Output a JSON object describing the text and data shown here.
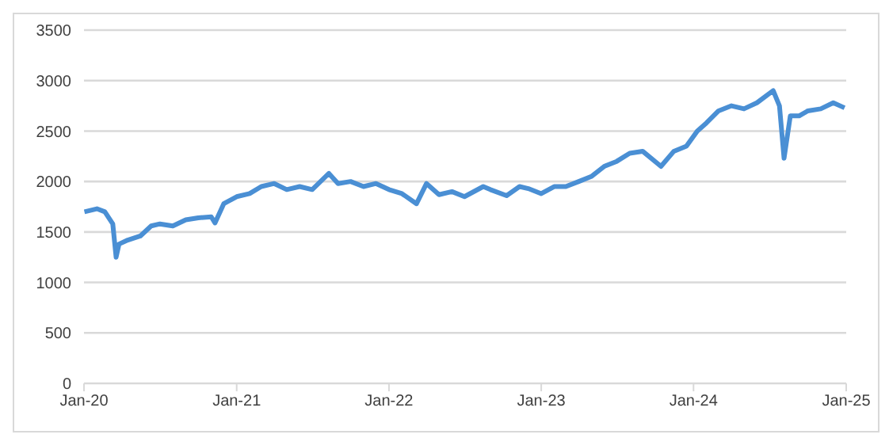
{
  "chart_data": {
    "type": "line",
    "x": [
      "2020-01-02",
      "2020-02-01",
      "2020-02-20",
      "2020-03-10",
      "2020-03-18",
      "2020-03-25",
      "2020-04-15",
      "2020-05-15",
      "2020-06-10",
      "2020-07-01",
      "2020-08-01",
      "2020-09-01",
      "2020-10-01",
      "2020-11-01",
      "2020-11-10",
      "2020-12-01",
      "2021-01-01",
      "2021-02-01",
      "2021-03-01",
      "2021-04-01",
      "2021-05-01",
      "2021-06-01",
      "2021-07-01",
      "2021-08-10",
      "2021-09-01",
      "2021-10-01",
      "2021-11-01",
      "2021-12-01",
      "2022-01-01",
      "2022-02-01",
      "2022-03-08",
      "2022-04-01",
      "2022-05-01",
      "2022-06-01",
      "2022-07-01",
      "2022-08-15",
      "2022-09-01",
      "2022-10-10",
      "2022-11-10",
      "2022-12-01",
      "2023-01-01",
      "2023-02-01",
      "2023-03-01",
      "2023-04-01",
      "2023-05-01",
      "2023-06-01",
      "2023-07-01",
      "2023-08-01",
      "2023-09-01",
      "2023-10-15",
      "2023-11-15",
      "2023-12-15",
      "2024-01-10",
      "2024-02-01",
      "2024-03-01",
      "2024-04-01",
      "2024-05-01",
      "2024-06-01",
      "2024-07-10",
      "2024-07-25",
      "2024-08-05",
      "2024-08-20",
      "2024-09-10",
      "2024-10-01",
      "2024-11-01",
      "2024-12-01",
      "2024-12-28"
    ],
    "series": [
      {
        "color": "#4a8fd4",
        "values": [
          1700,
          1730,
          1700,
          1580,
          1250,
          1380,
          1420,
          1460,
          1560,
          1580,
          1560,
          1620,
          1640,
          1650,
          1590,
          1780,
          1850,
          1880,
          1950,
          1980,
          1920,
          1950,
          1920,
          2080,
          1980,
          2000,
          1950,
          1980,
          1920,
          1880,
          1780,
          1980,
          1870,
          1900,
          1850,
          1950,
          1920,
          1860,
          1950,
          1930,
          1880,
          1950,
          1950,
          2000,
          2050,
          2150,
          2200,
          2280,
          2300,
          2150,
          2300,
          2350,
          2500,
          2580,
          2700,
          2750,
          2720,
          2780,
          2900,
          2750,
          2230,
          2650,
          2650,
          2700,
          2720,
          2780,
          2730
        ]
      }
    ],
    "ylim": [
      0,
      3500
    ],
    "yticks": [
      0,
      500,
      1000,
      1500,
      2000,
      2500,
      3000,
      3500
    ],
    "xlim": [
      "2020-01-01",
      "2025-01-01"
    ],
    "xticks": [
      {
        "value": "2020-01-01",
        "label": "Jan-20"
      },
      {
        "value": "2021-01-01",
        "label": "Jan-21"
      },
      {
        "value": "2022-01-01",
        "label": "Jan-22"
      },
      {
        "value": "2023-01-01",
        "label": "Jan-23"
      },
      {
        "value": "2024-01-01",
        "label": "Jan-24"
      },
      {
        "value": "2025-01-01",
        "label": "Jan-25"
      }
    ],
    "grid": "y",
    "legend": false,
    "marker": "none",
    "line_style": "solid"
  }
}
